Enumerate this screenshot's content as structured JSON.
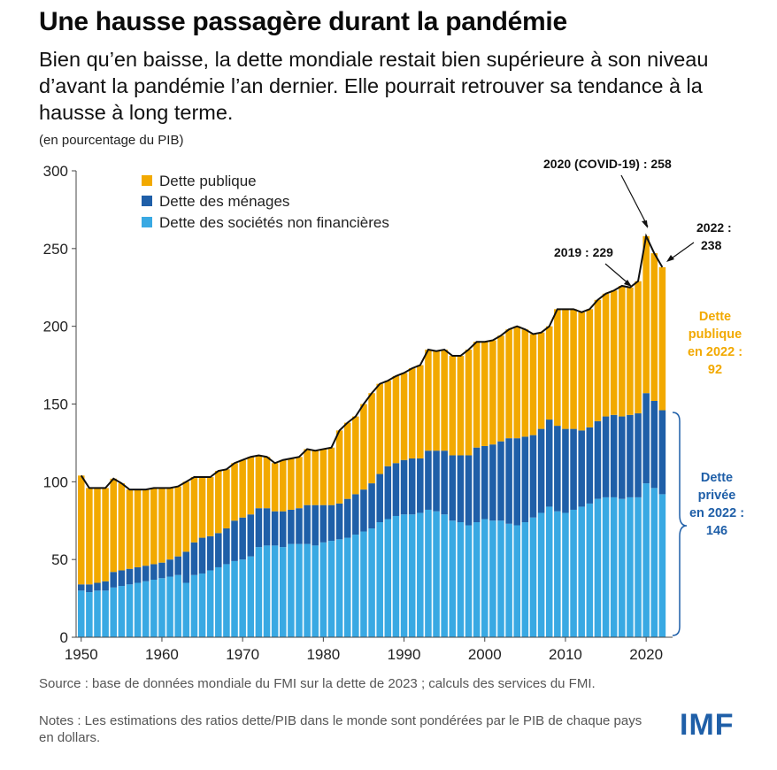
{
  "title": "Une hausse passagère durant la pandémie",
  "subtitle": "Bien qu’en baisse, la dette mondiale restait bien supérieure à son niveau d’avant la pandémie l’an dernier. Elle pourrait retrouver sa tendance à la hausse à long terme.",
  "unit_note": "(en pourcentage du PIB)",
  "source": "Source : base de données mondiale du FMI sur la dette de 2023 ; calculs des services du FMI.",
  "notes": "Notes : Les estimations des ratios dette/PIB dans le monde sont pondérées par le PIB de chaque pays en dollars.",
  "logo": "IMF",
  "colors": {
    "public": "#f2a900",
    "households": "#1f5fa8",
    "corporate": "#39a9e3",
    "line": "#111111",
    "annot_public": "#f2a900",
    "annot_private": "#1f5fa8"
  },
  "annotations": {
    "covid": "2020 (COVID-19) : 258",
    "y2019": "2019 : 229",
    "y2022_a": "2022 :",
    "y2022_b": "238",
    "public2022": [
      "Dette",
      "publique",
      "en 2022 :",
      "92"
    ],
    "private2022": [
      "Dette",
      "privée",
      "en 2022 :",
      "146"
    ]
  },
  "chart_data": {
    "type": "bar",
    "stacked": true,
    "title": "",
    "xlabel": "",
    "ylabel": "",
    "ylim": [
      0,
      300
    ],
    "yticks": [
      0,
      50,
      100,
      150,
      200,
      250,
      300
    ],
    "xticks": [
      1950,
      1960,
      1970,
      1980,
      1990,
      2000,
      2010,
      2020
    ],
    "grid": false,
    "legend_position": "top-left",
    "categories": [
      1950,
      1951,
      1952,
      1953,
      1954,
      1955,
      1956,
      1957,
      1958,
      1959,
      1960,
      1961,
      1962,
      1963,
      1964,
      1965,
      1966,
      1967,
      1968,
      1969,
      1970,
      1971,
      1972,
      1973,
      1974,
      1975,
      1976,
      1977,
      1978,
      1979,
      1980,
      1981,
      1982,
      1983,
      1984,
      1985,
      1986,
      1987,
      1988,
      1989,
      1990,
      1991,
      1992,
      1993,
      1994,
      1995,
      1996,
      1997,
      1998,
      1999,
      2000,
      2001,
      2002,
      2003,
      2004,
      2005,
      2006,
      2007,
      2008,
      2009,
      2010,
      2011,
      2012,
      2013,
      2014,
      2015,
      2016,
      2017,
      2018,
      2019,
      2020,
      2021,
      2022
    ],
    "series": [
      {
        "name": "Dette des sociétés non financières",
        "values": [
          30,
          29,
          30,
          30,
          32,
          33,
          34,
          35,
          36,
          37,
          38,
          39,
          40,
          35,
          40,
          41,
          43,
          45,
          47,
          49,
          50,
          52,
          58,
          59,
          59,
          58,
          60,
          60,
          60,
          59,
          61,
          62,
          63,
          64,
          66,
          68,
          70,
          74,
          76,
          78,
          79,
          79,
          80,
          82,
          81,
          79,
          75,
          74,
          72,
          74,
          76,
          75,
          75,
          73,
          72,
          74,
          77,
          80,
          84,
          81,
          80,
          82,
          84,
          86,
          89,
          90,
          90,
          89,
          90,
          90,
          99,
          96,
          92
        ]
      },
      {
        "name": "Dette des ménages",
        "values": [
          4,
          5,
          5,
          6,
          10,
          10,
          10,
          10,
          10,
          10,
          10,
          11,
          12,
          20,
          21,
          23,
          22,
          22,
          23,
          26,
          27,
          27,
          25,
          24,
          22,
          23,
          22,
          23,
          25,
          26,
          24,
          23,
          23,
          25,
          26,
          27,
          29,
          31,
          34,
          34,
          35,
          36,
          35,
          38,
          39,
          41,
          42,
          43,
          45,
          48,
          47,
          49,
          51,
          55,
          56,
          55,
          53,
          54,
          56,
          55,
          54,
          52,
          49,
          49,
          50,
          52,
          53,
          53,
          53,
          54,
          58,
          56,
          54
        ]
      },
      {
        "name": "Dette publique",
        "values": [
          70,
          62,
          61,
          60,
          60,
          56,
          51,
          50,
          49,
          49,
          48,
          46,
          45,
          45,
          42,
          39,
          38,
          40,
          38,
          37,
          37,
          37,
          34,
          33,
          31,
          33,
          33,
          33,
          36,
          35,
          36,
          37,
          47,
          49,
          50,
          55,
          58,
          58,
          55,
          56,
          56,
          58,
          60,
          65,
          64,
          65,
          64,
          64,
          68,
          68,
          67,
          67,
          68,
          70,
          72,
          69,
          65,
          62,
          60,
          75,
          77,
          77,
          76,
          76,
          78,
          79,
          80,
          84,
          82,
          85,
          101,
          95,
          92
        ]
      }
    ]
  }
}
